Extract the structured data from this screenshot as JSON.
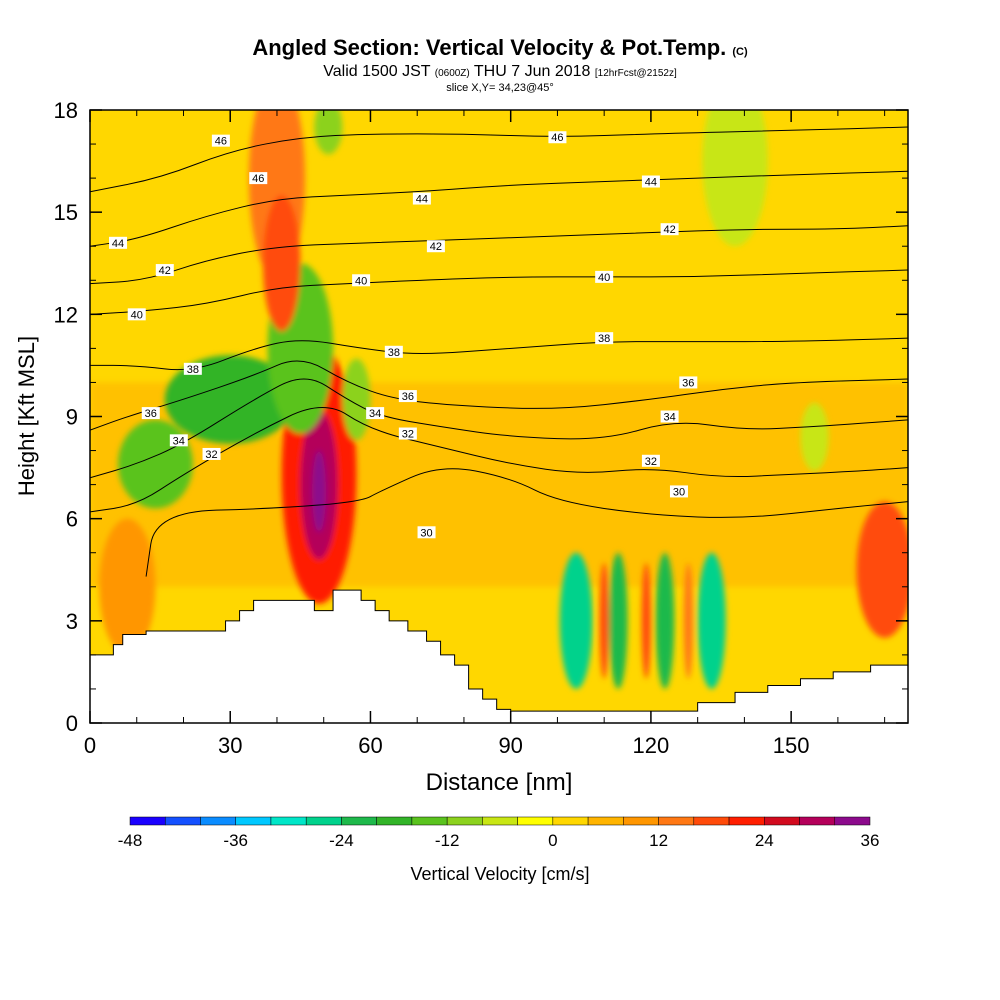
{
  "titles": {
    "main": "Angled Section: Vertical Velocity & Pot.Temp.",
    "main_unit": "(C)",
    "valid_pre": "Valid 1500 JST",
    "valid_utc": "(0600Z)",
    "valid_date": "THU 7 Jun 2018",
    "valid_fcst": "[12hrFcst@2152z]",
    "slice": "slice X,Y= 34,23@45°"
  },
  "chart_data": {
    "type": "heatmap",
    "title": "Angled Section: Vertical Velocity & Pot.Temp. (C)",
    "xlabel": "Distance [nm]",
    "ylabel": "Height [Kft MSL]",
    "xlim": [
      0,
      175
    ],
    "ylim": [
      0,
      18
    ],
    "x_ticks": [
      0,
      30,
      60,
      90,
      120,
      150
    ],
    "y_ticks": [
      0,
      3,
      6,
      9,
      12,
      15,
      18
    ],
    "colorbar": {
      "label": "Vertical Velocity [cm/s]",
      "ticks": [
        -48,
        -36,
        -24,
        -12,
        0,
        12,
        24,
        36
      ],
      "levels": [
        -48,
        -44,
        -40,
        -36,
        -32,
        -28,
        -24,
        -20,
        -16,
        -12,
        -8,
        -4,
        0,
        4,
        8,
        12,
        16,
        20,
        24,
        28,
        32,
        36
      ],
      "colors": [
        "#1a00ff",
        "#1450ff",
        "#0a8cff",
        "#00c8ff",
        "#00e6c8",
        "#00d28c",
        "#1eb94b",
        "#32b428",
        "#5ac31e",
        "#8cd21e",
        "#c8e614",
        "#ffff00",
        "#ffd700",
        "#ffb400",
        "#ff9600",
        "#ff7814",
        "#ff4b0a",
        "#ff1e00",
        "#d20a1e",
        "#b4005a",
        "#8c0a8c",
        "#5a0096"
      ]
    },
    "terrain": [
      [
        0,
        2
      ],
      [
        5,
        2
      ],
      [
        5,
        2.3
      ],
      [
        7,
        2.3
      ],
      [
        7,
        2.6
      ],
      [
        12,
        2.6
      ],
      [
        12,
        2.7
      ],
      [
        29,
        2.7
      ],
      [
        29,
        3
      ],
      [
        32,
        3
      ],
      [
        32,
        3.3
      ],
      [
        35,
        3.3
      ],
      [
        35,
        3.6
      ],
      [
        48,
        3.6
      ],
      [
        48,
        3.3
      ],
      [
        52,
        3.3
      ],
      [
        52,
        3.9
      ],
      [
        58,
        3.9
      ],
      [
        58,
        3.6
      ],
      [
        61,
        3.6
      ],
      [
        61,
        3.3
      ],
      [
        64,
        3.3
      ],
      [
        64,
        3
      ],
      [
        68,
        3
      ],
      [
        68,
        2.7
      ],
      [
        72,
        2.7
      ],
      [
        72,
        2.4
      ],
      [
        75,
        2.4
      ],
      [
        75,
        2
      ],
      [
        78,
        2
      ],
      [
        78,
        1.7
      ],
      [
        81,
        1.7
      ],
      [
        81,
        1
      ],
      [
        84,
        1
      ],
      [
        84,
        0.7
      ],
      [
        87,
        0.7
      ],
      [
        87,
        0.4
      ],
      [
        90,
        0.4
      ],
      [
        90,
        0.35
      ],
      [
        130,
        0.35
      ],
      [
        130,
        0.6
      ],
      [
        138,
        0.6
      ],
      [
        138,
        0.9
      ],
      [
        145,
        0.9
      ],
      [
        145,
        1.1
      ],
      [
        152,
        1.1
      ],
      [
        152,
        1.3
      ],
      [
        159,
        1.3
      ],
      [
        159,
        1.5
      ],
      [
        167,
        1.5
      ],
      [
        167,
        1.7
      ],
      [
        175,
        1.7
      ]
    ],
    "theta_contours": [
      {
        "level": "30",
        "pts": [
          [
            12,
            4.3
          ],
          [
            14,
            6.2
          ],
          [
            40,
            6.3
          ],
          [
            58,
            6.5
          ],
          [
            62,
            6.8
          ],
          [
            75,
            7.6
          ],
          [
            90,
            7.2
          ],
          [
            100,
            6.5
          ],
          [
            120,
            6.1
          ],
          [
            140,
            6.0
          ],
          [
            160,
            6.3
          ],
          [
            175,
            6.5
          ]
        ],
        "label_at": [
          [
            72,
            5.6
          ],
          [
            126,
            6.8
          ]
        ]
      },
      {
        "level": "32",
        "pts": [
          [
            0,
            6.2
          ],
          [
            10,
            6.4
          ],
          [
            20,
            7.3
          ],
          [
            35,
            8.5
          ],
          [
            50,
            9.5
          ],
          [
            60,
            8.6
          ],
          [
            75,
            8.1
          ],
          [
            90,
            7.6
          ],
          [
            105,
            7.3
          ],
          [
            120,
            7.5
          ],
          [
            135,
            7.2
          ],
          [
            150,
            7.3
          ],
          [
            165,
            7.4
          ],
          [
            175,
            7.5
          ]
        ],
        "label_at": [
          [
            26,
            7.9
          ],
          [
            68,
            8.5
          ],
          [
            120,
            7.7
          ]
        ]
      },
      {
        "level": "34",
        "pts": [
          [
            0,
            7.2
          ],
          [
            10,
            7.6
          ],
          [
            20,
            8.2
          ],
          [
            35,
            9.5
          ],
          [
            46,
            10.3
          ],
          [
            55,
            9.5
          ],
          [
            62,
            9.0
          ],
          [
            75,
            8.7
          ],
          [
            90,
            8.4
          ],
          [
            110,
            8.3
          ],
          [
            125,
            8.9
          ],
          [
            140,
            8.6
          ],
          [
            155,
            8.7
          ],
          [
            175,
            8.9
          ]
        ],
        "label_at": [
          [
            19,
            8.3
          ],
          [
            61,
            9.1
          ],
          [
            124,
            9.0
          ]
        ]
      },
      {
        "level": "36",
        "pts": [
          [
            0,
            8.6
          ],
          [
            8,
            9.0
          ],
          [
            20,
            9.5
          ],
          [
            35,
            10.2
          ],
          [
            45,
            10.8
          ],
          [
            55,
            10.0
          ],
          [
            65,
            9.5
          ],
          [
            80,
            9.3
          ],
          [
            100,
            9.2
          ],
          [
            120,
            9.5
          ],
          [
            135,
            9.8
          ],
          [
            150,
            10.0
          ],
          [
            175,
            10.1
          ]
        ],
        "label_at": [
          [
            13,
            9.1
          ],
          [
            68,
            9.6
          ],
          [
            128,
            10.0
          ]
        ]
      },
      {
        "level": "38",
        "pts": [
          [
            0,
            10.5
          ],
          [
            10,
            10.5
          ],
          [
            22,
            10.3
          ],
          [
            35,
            11.0
          ],
          [
            45,
            11.3
          ],
          [
            58,
            11.0
          ],
          [
            70,
            10.8
          ],
          [
            90,
            11.0
          ],
          [
            110,
            11.2
          ],
          [
            130,
            11.2
          ],
          [
            150,
            11.2
          ],
          [
            175,
            11.3
          ]
        ],
        "label_at": [
          [
            22,
            10.4
          ],
          [
            65,
            10.9
          ],
          [
            110,
            11.3
          ]
        ]
      },
      {
        "level": "40",
        "pts": [
          [
            0,
            12.0
          ],
          [
            12,
            12.1
          ],
          [
            25,
            12.3
          ],
          [
            40,
            12.8
          ],
          [
            55,
            12.9
          ],
          [
            70,
            13.0
          ],
          [
            90,
            13.1
          ],
          [
            110,
            13.1
          ],
          [
            130,
            13.1
          ],
          [
            150,
            13.2
          ],
          [
            175,
            13.3
          ]
        ],
        "label_at": [
          [
            10,
            12.0
          ],
          [
            58,
            13.0
          ],
          [
            110,
            13.1
          ]
        ]
      },
      {
        "level": "42",
        "pts": [
          [
            0,
            12.9
          ],
          [
            12,
            13.0
          ],
          [
            25,
            13.6
          ],
          [
            40,
            14.0
          ],
          [
            60,
            14.1
          ],
          [
            80,
            14.2
          ],
          [
            100,
            14.3
          ],
          [
            120,
            14.4
          ],
          [
            140,
            14.5
          ],
          [
            160,
            14.5
          ],
          [
            175,
            14.6
          ]
        ],
        "label_at": [
          [
            16,
            13.3
          ],
          [
            74,
            14.0
          ],
          [
            124,
            14.5
          ]
        ]
      },
      {
        "level": "44",
        "pts": [
          [
            0,
            14.0
          ],
          [
            10,
            14.2
          ],
          [
            25,
            14.9
          ],
          [
            40,
            15.4
          ],
          [
            55,
            15.5
          ],
          [
            70,
            15.6
          ],
          [
            90,
            15.8
          ],
          [
            110,
            15.9
          ],
          [
            130,
            16.0
          ],
          [
            150,
            16.1
          ],
          [
            175,
            16.2
          ]
        ],
        "label_at": [
          [
            6,
            14.1
          ],
          [
            71,
            15.4
          ],
          [
            120,
            15.9
          ]
        ]
      },
      {
        "level": "46",
        "pts": [
          [
            0,
            15.6
          ],
          [
            15,
            16.0
          ],
          [
            30,
            16.8
          ],
          [
            45,
            17.2
          ],
          [
            60,
            17.3
          ],
          [
            80,
            17.3
          ],
          [
            100,
            17.2
          ],
          [
            120,
            17.3
          ],
          [
            150,
            17.4
          ],
          [
            175,
            17.5
          ]
        ],
        "label_at": [
          [
            36,
            16.0
          ],
          [
            100,
            17.2
          ],
          [
            28,
            17.1
          ]
        ]
      }
    ],
    "velocity_blobs": [
      {
        "cx": 49,
        "cy": 7.3,
        "rx": 8,
        "ry": 3.8,
        "value": 22
      },
      {
        "cx": 49,
        "cy": 7.0,
        "rx": 4,
        "ry": 2.2,
        "value": 30
      },
      {
        "cx": 49,
        "cy": 6.8,
        "rx": 1.5,
        "ry": 1.2,
        "value": 35
      },
      {
        "cx": 14,
        "cy": 7.6,
        "rx": 8,
        "ry": 1.3,
        "value": -16
      },
      {
        "cx": 30,
        "cy": 9.5,
        "rx": 14,
        "ry": 1.3,
        "value": -18
      },
      {
        "cx": 45,
        "cy": 11.0,
        "rx": 7,
        "ry": 2.5,
        "value": -16
      },
      {
        "cx": 57,
        "cy": 9.5,
        "rx": 3,
        "ry": 1.2,
        "value": -12
      },
      {
        "cx": 40,
        "cy": 16.0,
        "rx": 6,
        "ry": 3.0,
        "value": 14
      },
      {
        "cx": 41,
        "cy": 13.5,
        "rx": 4,
        "ry": 2.0,
        "value": 16
      },
      {
        "cx": 51,
        "cy": 17.5,
        "rx": 3,
        "ry": 0.8,
        "value": -10
      },
      {
        "cx": 138,
        "cy": 16.5,
        "rx": 7,
        "ry": 2.5,
        "value": -8
      },
      {
        "cx": 104,
        "cy": 3.0,
        "rx": 3.5,
        "ry": 2.0,
        "value": -28
      },
      {
        "cx": 113,
        "cy": 3.0,
        "rx": 2.0,
        "ry": 2.0,
        "value": -24
      },
      {
        "cx": 123,
        "cy": 3.0,
        "rx": 2.0,
        "ry": 2.0,
        "value": -22
      },
      {
        "cx": 133,
        "cy": 3.0,
        "rx": 3.0,
        "ry": 2.0,
        "value": -28
      },
      {
        "cx": 110,
        "cy": 3.0,
        "rx": 1.0,
        "ry": 1.7,
        "value": 18
      },
      {
        "cx": 119,
        "cy": 3.0,
        "rx": 1.0,
        "ry": 1.7,
        "value": 18
      },
      {
        "cx": 128,
        "cy": 3.0,
        "rx": 1.0,
        "ry": 1.7,
        "value": 14
      },
      {
        "cx": 170,
        "cy": 4.5,
        "rx": 6,
        "ry": 2.0,
        "value": 16
      },
      {
        "cx": 8,
        "cy": 4.0,
        "rx": 6,
        "ry": 2.0,
        "value": 8
      },
      {
        "cx": 155,
        "cy": 8.4,
        "rx": 3,
        "ry": 1.0,
        "value": -8
      }
    ]
  }
}
